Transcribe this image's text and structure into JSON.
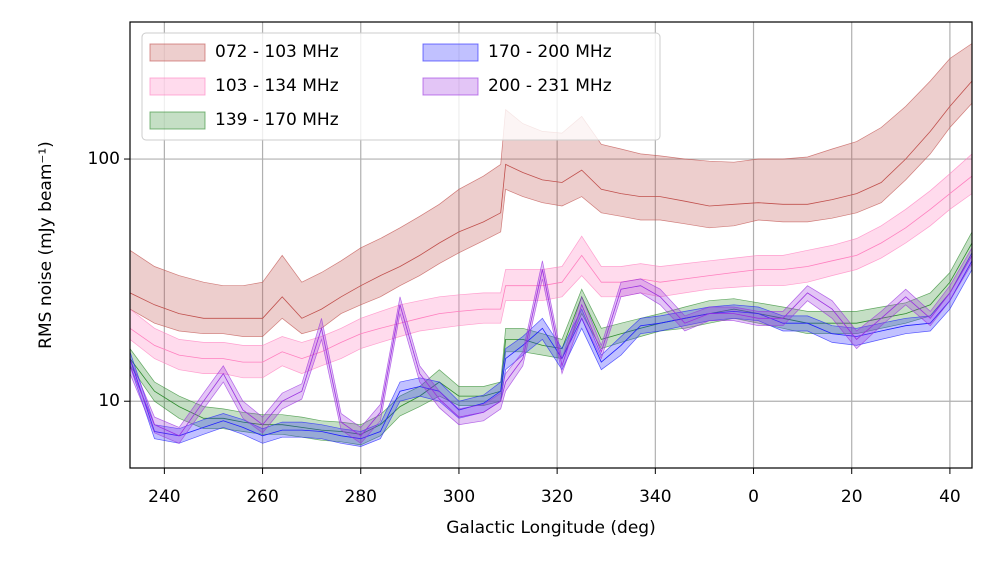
{
  "chart_data": {
    "type": "band",
    "x_label": "Galactic Longitude (deg)",
    "y_label": "RMS noise (mJy beam⁻¹)",
    "log_y": true,
    "grid": true,
    "legend": "upper left",
    "xlim": [
      233,
      404.5
    ],
    "xticks": [
      240,
      260,
      280,
      300,
      320,
      340,
      {
        "value": 360,
        "label": "0"
      },
      {
        "value": 380,
        "label": "20"
      },
      {
        "value": 400,
        "label": "40"
      }
    ],
    "ylim": [
      5.3,
      368
    ],
    "yticks": [
      10,
      100
    ],
    "x": [
      233,
      238,
      243,
      248,
      252,
      256,
      260,
      264,
      268,
      272,
      276,
      280,
      284,
      288,
      292,
      296,
      300,
      305,
      308.5,
      309.5,
      313,
      317,
      321,
      325,
      329,
      333,
      337,
      341,
      346,
      351,
      356,
      361,
      366,
      371,
      376,
      381,
      386,
      391,
      396,
      400,
      404.5
    ],
    "series": [
      {
        "name": "072 - 103 MHz",
        "color": "#c0504d",
        "values": [
          28,
          25,
          23,
          22,
          22,
          22,
          22,
          27,
          22,
          24,
          27,
          30,
          33,
          36,
          40,
          45,
          50,
          55,
          60,
          95,
          88,
          82,
          80,
          90,
          75,
          72,
          70,
          70,
          67,
          64,
          65,
          66,
          65,
          65,
          68,
          72,
          80,
          100,
          130,
          165,
          210
        ],
        "lower": [
          24,
          21,
          19.5,
          19,
          19,
          18.5,
          18.5,
          22,
          19,
          20,
          23,
          25,
          27,
          30,
          33,
          37,
          41,
          46,
          50,
          75,
          70,
          66,
          64,
          70,
          60,
          58,
          56,
          56,
          54,
          52,
          53,
          56,
          55,
          55,
          57,
          60,
          66,
          82,
          105,
          135,
          170
        ],
        "upper": [
          42,
          36,
          33,
          31,
          30,
          30,
          31,
          40,
          31,
          34,
          38,
          43,
          47,
          52,
          58,
          65,
          75,
          85,
          95,
          160,
          140,
          130,
          128,
          150,
          115,
          110,
          105,
          103,
          100,
          98,
          97,
          100,
          100,
          102,
          110,
          118,
          135,
          165,
          210,
          260,
          300
        ]
      },
      {
        "name": "103 - 134 MHz",
        "color": "#ff7fbf",
        "values": [
          20,
          17,
          15.5,
          15,
          15,
          14.5,
          14.5,
          16,
          15,
          16,
          17.5,
          19,
          20,
          21,
          22,
          23,
          23.5,
          24,
          24,
          30,
          30,
          30,
          31,
          40,
          31,
          31,
          32,
          31,
          32,
          33,
          34,
          35,
          35,
          36,
          38,
          40,
          45,
          52,
          62,
          72,
          85
        ],
        "lower": [
          18,
          15,
          13.5,
          13,
          13,
          12.5,
          12.5,
          14,
          13,
          14,
          15,
          16.5,
          17.5,
          18.5,
          19.5,
          20,
          20.5,
          21,
          21,
          26,
          26,
          26,
          27,
          33,
          27,
          27,
          28,
          27,
          28,
          29,
          29.5,
          30,
          30,
          31,
          33,
          35,
          39,
          45,
          53,
          62,
          72
        ],
        "upper": [
          24,
          20,
          18,
          17.5,
          17.5,
          17,
          17,
          18.5,
          17.5,
          18.5,
          20,
          22,
          23.5,
          25,
          26,
          27,
          27.5,
          28,
          28,
          35,
          35,
          35,
          36,
          48,
          36,
          36,
          37,
          36,
          37,
          38,
          39,
          40,
          40,
          42,
          44,
          47,
          53,
          62,
          74,
          87,
          105
        ]
      },
      {
        "name": "139 - 170 MHz",
        "color": "#2e8b2e",
        "values": [
          15,
          11,
          9.5,
          8.5,
          8.5,
          8.2,
          8,
          8,
          7.8,
          7.6,
          7.5,
          7.3,
          8,
          9.5,
          10.5,
          12,
          10.5,
          10.5,
          11,
          18,
          18,
          17,
          16.5,
          27,
          18,
          19,
          20,
          21,
          22,
          23,
          24,
          23,
          22,
          21,
          21,
          21,
          22,
          23,
          25,
          31,
          45
        ],
        "lower": [
          14,
          10,
          8.5,
          7.7,
          7.7,
          7.5,
          7.3,
          7.3,
          7.1,
          6.9,
          6.8,
          6.6,
          7.2,
          8.7,
          9.5,
          10.5,
          9.6,
          9.6,
          10,
          16,
          16,
          15.5,
          15,
          23,
          16.5,
          17.5,
          18.5,
          19.5,
          20,
          21,
          22,
          21,
          20,
          19,
          19,
          19,
          20,
          21,
          22.5,
          28,
          41
        ],
        "upper": [
          16.5,
          12,
          10.5,
          9.5,
          9.3,
          9,
          8.8,
          8.8,
          8.6,
          8.3,
          8.2,
          8,
          8.8,
          10.5,
          11.5,
          13.5,
          11.5,
          11.5,
          12,
          20,
          20,
          19,
          18,
          29,
          20,
          21,
          22,
          23,
          24.5,
          26,
          26.5,
          25.5,
          24.5,
          23.5,
          23.5,
          23.5,
          24.5,
          25.5,
          28,
          34,
          50
        ]
      },
      {
        "name": "170 - 200 MHz",
        "color": "#2020ff",
        "values": [
          15,
          7.5,
          7.2,
          7.8,
          8.3,
          7.8,
          7.2,
          7.6,
          7.6,
          7.5,
          7.2,
          7,
          7.5,
          11,
          11.5,
          11,
          9.2,
          9.8,
          11,
          15,
          17,
          20,
          15,
          22,
          14.5,
          17,
          20.5,
          21,
          22,
          23,
          23.5,
          23,
          21,
          21,
          19,
          18.5,
          19.5,
          20.5,
          21,
          26,
          38
        ],
        "lower": [
          14,
          7,
          6.7,
          7.3,
          7.8,
          7.3,
          6.7,
          7.1,
          7.1,
          7,
          6.7,
          6.5,
          7,
          10,
          10.5,
          10,
          8.5,
          9,
          10,
          13.5,
          15.5,
          18,
          13.5,
          20,
          13.5,
          15.5,
          19,
          19.5,
          20.5,
          21.5,
          22,
          21.5,
          19.5,
          19.5,
          17.5,
          17,
          18,
          19,
          19.5,
          24,
          35
        ],
        "upper": [
          16,
          8,
          7.7,
          8.4,
          8.9,
          8.4,
          7.7,
          8.2,
          8.2,
          8,
          7.7,
          7.5,
          8.1,
          12,
          12.5,
          12,
          10,
          10.6,
          12,
          16.5,
          18.5,
          22,
          16.5,
          24,
          15.5,
          18.5,
          22,
          22.5,
          23.5,
          24.5,
          25,
          24.5,
          22.5,
          22.5,
          20.5,
          20,
          21,
          22,
          22.5,
          28,
          41
        ]
      },
      {
        "name": "200 - 231 MHz",
        "color": "#9a30e0",
        "values": [
          14,
          8,
          7.2,
          10,
          13,
          9.2,
          8,
          10,
          11,
          20,
          8.2,
          7.2,
          9,
          25,
          13,
          10.2,
          8.6,
          9,
          10,
          12,
          15,
          35,
          14,
          25,
          16,
          29,
          30,
          27,
          21,
          23,
          23,
          22,
          22,
          28,
          24,
          18,
          22,
          27,
          22,
          28,
          40
        ],
        "lower": [
          13,
          7.4,
          6.7,
          9.3,
          12,
          8.5,
          7.4,
          9.3,
          10.2,
          18,
          7.6,
          6.7,
          8.3,
          23,
          12,
          9.4,
          8,
          8.3,
          9.3,
          11,
          14,
          32,
          13,
          22,
          15,
          27,
          28,
          25,
          19.5,
          21.5,
          21.5,
          20.5,
          20.5,
          26,
          22,
          16.5,
          20.5,
          25,
          20.5,
          26,
          37
        ],
        "upper": [
          15,
          8.6,
          7.8,
          10.8,
          14,
          10,
          8.6,
          10.8,
          11.8,
          22,
          8.9,
          7.8,
          9.7,
          27,
          14,
          11,
          9.3,
          9.7,
          10.8,
          13,
          16,
          38,
          15,
          27,
          17,
          31,
          32,
          29,
          22.5,
          24.5,
          24.5,
          23.5,
          23.5,
          30,
          26,
          19.5,
          23.5,
          29,
          23.5,
          30,
          43
        ]
      }
    ]
  }
}
